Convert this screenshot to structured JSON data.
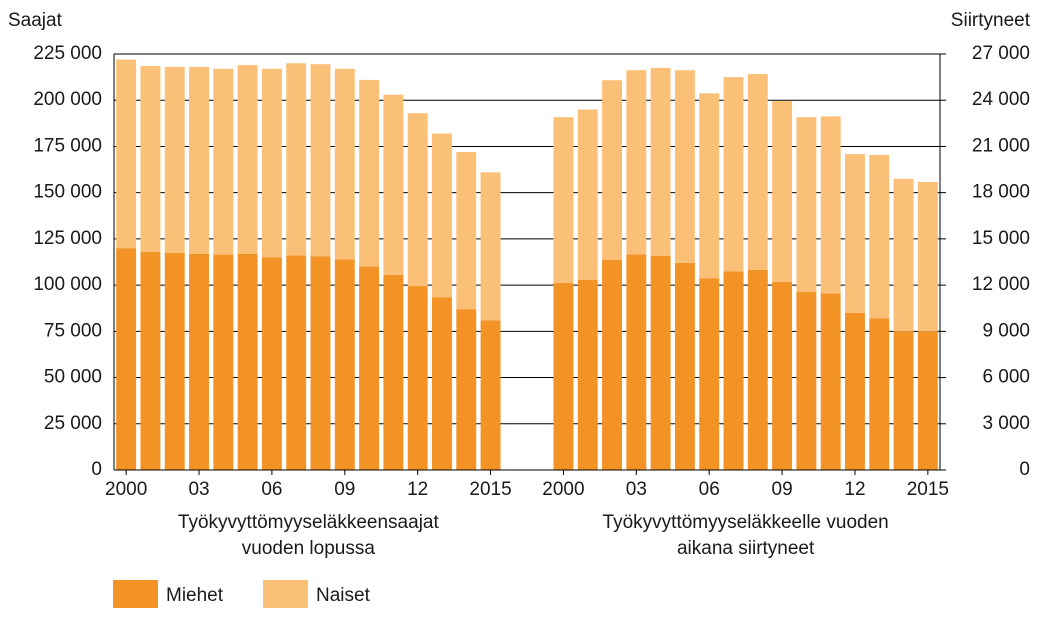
{
  "chart_data": {
    "type": "bar",
    "stacked": true,
    "ylabel": "Saajat",
    "y2label": "Siirtyneet",
    "ylim": [
      0,
      225000
    ],
    "yticks": [
      0,
      {
        "value": 25000,
        "label": "25 000"
      },
      {
        "value": 50000,
        "label": "50 000"
      },
      {
        "value": 75000,
        "label": "75 000"
      },
      {
        "value": 100000,
        "label": "100 000"
      },
      {
        "value": 125000,
        "label": "125 000"
      },
      {
        "value": 150000,
        "label": "150 000"
      },
      {
        "value": 175000,
        "label": "175 000"
      },
      {
        "value": 200000,
        "label": "200 000"
      },
      {
        "value": 225000,
        "label": "225 000"
      }
    ],
    "y2lim": [
      0,
      27000
    ],
    "y2ticks": [
      0,
      {
        "value": 3000,
        "label": "3 000"
      },
      {
        "value": 6000,
        "label": "6 000"
      },
      {
        "value": 9000,
        "label": "9 000"
      },
      {
        "value": 12000,
        "label": "12 000"
      },
      {
        "value": 15000,
        "label": "15 000"
      },
      {
        "value": 18000,
        "label": "18 000"
      },
      {
        "value": 21000,
        "label": "21 000"
      },
      {
        "value": 24000,
        "label": "24 000"
      },
      {
        "value": 27000,
        "label": "27 000"
      }
    ],
    "grid": true,
    "series": [
      {
        "name": "Miehet",
        "color": "#f39325"
      },
      {
        "name": "Naiset",
        "color": "#fbc078"
      }
    ],
    "groups": [
      {
        "label": [
          "Työkyvyttömyyseläkkeensaajat",
          "vuoden lopussa"
        ],
        "axis": "y",
        "categories": [
          "2000",
          null,
          null,
          "03",
          null,
          null,
          "06",
          null,
          null,
          "09",
          null,
          null,
          "12",
          null,
          null,
          "2015"
        ],
        "values": [
          [
            120000,
            118000,
            117500,
            117000,
            116500,
            117000,
            115000,
            116000,
            115500,
            114000,
            110000,
            105500,
            99500,
            93500,
            87000,
            81000
          ],
          [
            102000,
            100500,
            100500,
            101000,
            100500,
            102000,
            102000,
            104000,
            104000,
            103000,
            101000,
            97500,
            93500,
            88500,
            85000,
            80000
          ]
        ]
      },
      {
        "label": [
          "Työkyvyttömyyseläkkeelle vuoden",
          "aikana siirtyneet"
        ],
        "axis": "y2",
        "categories": [
          "2000",
          null,
          null,
          "03",
          null,
          null,
          "06",
          null,
          null,
          "09",
          null,
          null,
          "12",
          null,
          null,
          "2015"
        ],
        "values": [
          [
            12150,
            12350,
            13650,
            14000,
            13900,
            13450,
            12450,
            12900,
            13000,
            12200,
            11550,
            11450,
            10200,
            9850,
            9000,
            9000
          ],
          [
            10750,
            11050,
            11650,
            11950,
            12200,
            12500,
            12000,
            12600,
            12700,
            11750,
            11350,
            11500,
            10300,
            10600,
            9900,
            9700
          ]
        ]
      }
    ]
  }
}
